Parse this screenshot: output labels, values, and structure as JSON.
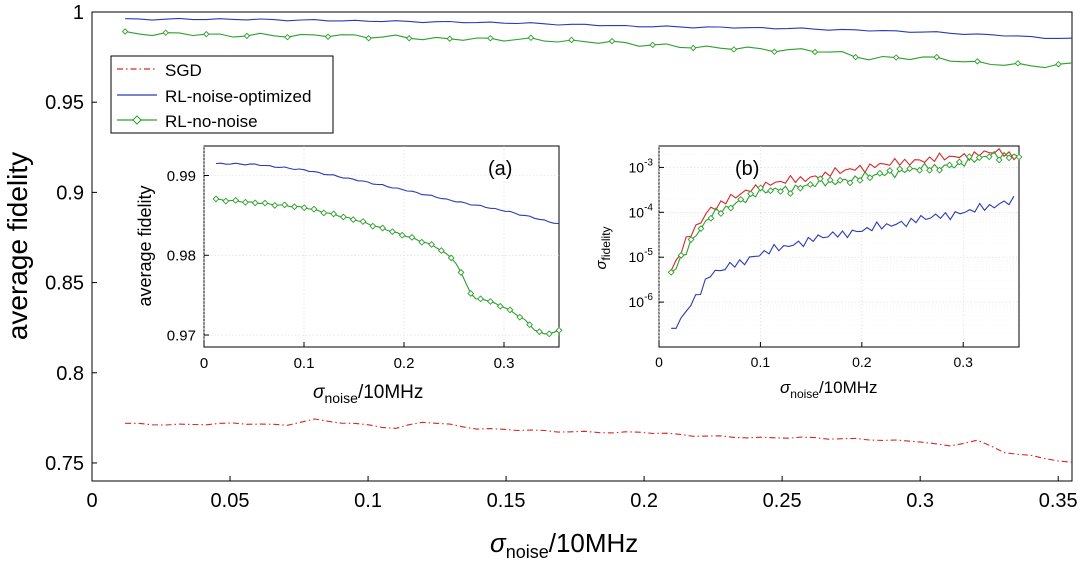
{
  "chart_data": [
    {
      "type": "line",
      "ylabel": "average fidelity",
      "xlabel_main": "σ",
      "xlabel_sub": "noise",
      "xlabel_unit": "/10MHz",
      "xlim": [
        0,
        0.355
      ],
      "ylim": [
        0.74,
        1.0
      ],
      "xticks": [
        0,
        0.05,
        0.1,
        0.15,
        0.2,
        0.25,
        0.3,
        0.35
      ],
      "xtick_labels": [
        "0",
        "0.05",
        "0.1",
        "0.15",
        "0.2",
        "0.25",
        "0.3",
        "0.35"
      ],
      "yticks": [
        0.75,
        0.8,
        0.85,
        0.9,
        0.95,
        1.0
      ],
      "ytick_labels": [
        "0.75",
        "0.8",
        "0.85",
        "0.9",
        "0.95",
        "1"
      ],
      "legend_position": "top-left",
      "series": [
        {
          "name": "SGD",
          "color": "#d62728",
          "style": "dash-dot",
          "x": [
            0.012,
            0.03,
            0.05,
            0.07,
            0.08,
            0.1,
            0.11,
            0.12,
            0.14,
            0.16,
            0.18,
            0.2,
            0.22,
            0.24,
            0.26,
            0.28,
            0.3,
            0.31,
            0.32,
            0.33,
            0.34,
            0.355
          ],
          "y": [
            0.772,
            0.771,
            0.772,
            0.771,
            0.774,
            0.771,
            0.769,
            0.773,
            0.769,
            0.768,
            0.767,
            0.767,
            0.765,
            0.764,
            0.764,
            0.763,
            0.762,
            0.759,
            0.763,
            0.756,
            0.754,
            0.75
          ]
        },
        {
          "name": "RL-noise-optimized",
          "color": "#2b3bb5",
          "style": "solid",
          "x": [
            0.012,
            0.05,
            0.1,
            0.15,
            0.2,
            0.25,
            0.3,
            0.33,
            0.355
          ],
          "y": [
            0.996,
            0.996,
            0.995,
            0.994,
            0.992,
            0.991,
            0.989,
            0.987,
            0.985
          ]
        },
        {
          "name": "RL-no-noise",
          "color": "#2ca02c",
          "style": "solid-diamond",
          "x": [
            0.012,
            0.03,
            0.05,
            0.07,
            0.09,
            0.11,
            0.13,
            0.15,
            0.17,
            0.19,
            0.21,
            0.23,
            0.25,
            0.27,
            0.28,
            0.3,
            0.32,
            0.33,
            0.34,
            0.355
          ],
          "y": [
            0.988,
            0.988,
            0.987,
            0.987,
            0.987,
            0.986,
            0.985,
            0.985,
            0.984,
            0.983,
            0.981,
            0.98,
            0.979,
            0.978,
            0.974,
            0.975,
            0.972,
            0.971,
            0.97,
            0.971
          ]
        }
      ]
    },
    {
      "type": "line",
      "panel_label": "(a)",
      "ylabel": "average fidelity",
      "xlabel_main": "σ",
      "xlabel_sub": "noise",
      "xlabel_unit": "/10MHz",
      "xlim": [
        0,
        0.355
      ],
      "ylim": [
        0.9685,
        0.9937
      ],
      "xticks": [
        0,
        0.1,
        0.2,
        0.3
      ],
      "xtick_labels": [
        "0",
        "0.1",
        "0.2",
        "0.3"
      ],
      "yticks": [
        0.97,
        0.98,
        0.99
      ],
      "ytick_labels": [
        "0.97",
        "0.98",
        "0.99"
      ],
      "series": [
        {
          "name": "RL-noise-optimized",
          "color": "#2b3bb5",
          "x": [
            0.012,
            0.05,
            0.1,
            0.15,
            0.2,
            0.25,
            0.3,
            0.33,
            0.355
          ],
          "y": [
            0.9915,
            0.9914,
            0.9907,
            0.9895,
            0.9882,
            0.9868,
            0.9856,
            0.9847,
            0.9839
          ]
        },
        {
          "name": "RL-no-noise",
          "color": "#2ca02c",
          "x": [
            0.012,
            0.05,
            0.1,
            0.15,
            0.2,
            0.23,
            0.25,
            0.27,
            0.28,
            0.3,
            0.32,
            0.33,
            0.34,
            0.355
          ],
          "y": [
            0.987,
            0.9866,
            0.986,
            0.9845,
            0.9825,
            0.9812,
            0.9795,
            0.9745,
            0.9745,
            0.9735,
            0.972,
            0.9707,
            0.9701,
            0.9705
          ]
        }
      ]
    },
    {
      "type": "line",
      "panel_label": "(b)",
      "ylabel_main": "σ",
      "ylabel_sub": "fidelity",
      "xlabel_main": "σ",
      "xlabel_sub": "noise",
      "xlabel_unit": "/10MHz",
      "xlim": [
        0,
        0.355
      ],
      "ylog": true,
      "ylim": [
        1e-07,
        0.003
      ],
      "xticks": [
        0,
        0.1,
        0.2,
        0.3
      ],
      "xtick_labels": [
        "0",
        "0.1",
        "0.2",
        "0.3"
      ],
      "ytick_labels": [
        {
          "value": 0.001,
          "base": "10",
          "exp": "-3"
        },
        {
          "value": 0.0001,
          "base": "10",
          "exp": "-4"
        },
        {
          "value": 1e-05,
          "base": "10",
          "exp": "-5"
        },
        {
          "value": 1e-06,
          "base": "10",
          "exp": "-6"
        }
      ],
      "series": [
        {
          "name": "SGD",
          "color": "#d62728",
          "x": [
            0.012,
            0.03,
            0.05,
            0.08,
            0.1,
            0.15,
            0.2,
            0.25,
            0.3,
            0.33,
            0.355
          ],
          "y": [
            5e-06,
            3e-05,
            0.00012,
            0.00025,
            0.0004,
            0.0006,
            0.001,
            0.0014,
            0.0018,
            0.0022,
            0.0018
          ]
        },
        {
          "name": "RL-noise-optimized",
          "color": "#2b3bb5",
          "x": [
            0.012,
            0.03,
            0.05,
            0.1,
            0.15,
            0.2,
            0.25,
            0.3,
            0.33,
            0.35
          ],
          "y": [
            2e-07,
            8e-07,
            4e-06,
            1.2e-05,
            2.5e-05,
            4e-05,
            6.5e-05,
            0.0001,
            0.00014,
            0.0002
          ]
        },
        {
          "name": "RL-no-noise",
          "color": "#2ca02c",
          "x": [
            0.012,
            0.03,
            0.05,
            0.08,
            0.1,
            0.15,
            0.2,
            0.25,
            0.3,
            0.33,
            0.355
          ],
          "y": [
            4e-06,
            2e-05,
            8e-05,
            0.00018,
            0.00028,
            0.0004,
            0.0006,
            0.0009,
            0.0012,
            0.002,
            0.0017
          ]
        }
      ]
    }
  ]
}
